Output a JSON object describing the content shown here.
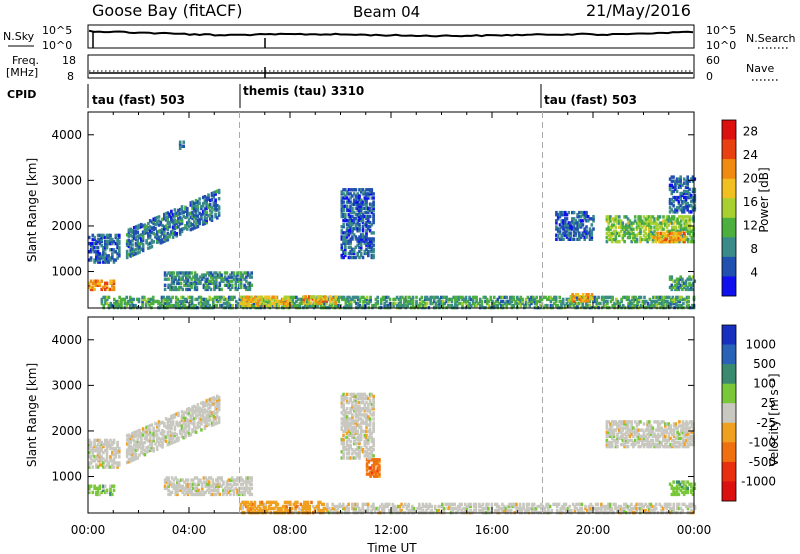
{
  "header": {
    "title": "Goose Bay (fitACF)",
    "beam": "Beam 04",
    "date": "21/May/2016"
  },
  "nsky_panel": {
    "left_label": "N.Sky",
    "right_label": "N.Search",
    "left_ticks": [
      "10^5",
      "10^0"
    ],
    "right_ticks": [
      "10^5",
      "10^0"
    ],
    "right_legend_style": "dotted"
  },
  "freq_panel": {
    "left_label_line1": "Freq.",
    "left_label_line2": "[MHz]",
    "left_ticks": [
      "18",
      "8"
    ],
    "right_label": "Nave",
    "right_ticks": [
      "60",
      "0"
    ],
    "right_legend_style": "dotted"
  },
  "cpid_panel": {
    "label": "CPID",
    "segments": [
      {
        "label": "tau (fast) 503",
        "start_hour": 0
      },
      {
        "label": "themis (tau) 3310",
        "start_hour": 6
      },
      {
        "label": "tau (fast) 503",
        "start_hour": 18
      }
    ]
  },
  "chart_data": [
    {
      "type": "heatmap",
      "name_key": "power",
      "ylabel": "Slant Range [km]",
      "y_ticks": [
        "1000",
        "2000",
        "3000",
        "4000"
      ],
      "y_tick_values": [
        1000,
        2000,
        3000,
        4000
      ],
      "ylim": [
        200,
        4500
      ],
      "xlim_hours": [
        0,
        24
      ],
      "colorbar": {
        "label": "Power [dB]",
        "ticks": [
          "4",
          "8",
          "12",
          "16",
          "20",
          "24",
          "28"
        ],
        "tick_values": [
          4,
          8,
          12,
          16,
          20,
          24,
          28
        ],
        "range": [
          0,
          30
        ],
        "colors": [
          "#1010ee",
          "#2050b0",
          "#3a8a8a",
          "#4caf3e",
          "#a8d030",
          "#f0c020",
          "#f08a10",
          "#e84010",
          "#dd1010"
        ]
      },
      "features": [
        {
          "t": [
            0.0,
            1.0
          ],
          "r": [
            600,
            800
          ],
          "v": 21
        },
        {
          "t": [
            0.0,
            1.2
          ],
          "r": [
            1200,
            1800
          ],
          "v": 6
        },
        {
          "t": [
            1.5,
            5.2
          ],
          "r": [
            1300,
            2800
          ],
          "v": 7,
          "slope": true
        },
        {
          "t": [
            3.0,
            6.5
          ],
          "r": [
            600,
            1000
          ],
          "v": 8
        },
        {
          "t": [
            0.5,
            24.0
          ],
          "r": [
            200,
            450
          ],
          "v": 10
        },
        {
          "t": [
            6.0,
            8.0
          ],
          "r": [
            250,
            450
          ],
          "v": 18
        },
        {
          "t": [
            8.5,
            9.8
          ],
          "r": [
            300,
            450
          ],
          "v": 20
        },
        {
          "t": [
            10.0,
            11.3
          ],
          "r": [
            1300,
            2800
          ],
          "v": 6
        },
        {
          "t": [
            18.5,
            20.0
          ],
          "r": [
            1700,
            2300
          ],
          "v": 6
        },
        {
          "t": [
            19.0,
            20.0
          ],
          "r": [
            350,
            500
          ],
          "v": 20
        },
        {
          "t": [
            20.5,
            24.0
          ],
          "r": [
            1650,
            2200
          ],
          "v": 13
        },
        {
          "t": [
            22.3,
            23.6
          ],
          "r": [
            1650,
            1850
          ],
          "v": 21
        },
        {
          "t": [
            23.0,
            24.0
          ],
          "r": [
            600,
            900
          ],
          "v": 10
        },
        {
          "t": [
            3.6,
            3.8
          ],
          "r": [
            3650,
            3850
          ],
          "v": 6
        },
        {
          "t": [
            23.0,
            24.0
          ],
          "r": [
            2300,
            3100
          ],
          "v": 6
        }
      ]
    },
    {
      "type": "heatmap",
      "name_key": "velocity",
      "ylabel": "Slant Range [km]",
      "y_ticks": [
        "1000",
        "2000",
        "3000",
        "4000"
      ],
      "y_tick_values": [
        1000,
        2000,
        3000,
        4000
      ],
      "ylim": [
        200,
        4500
      ],
      "xlim_hours": [
        0,
        24
      ],
      "xlabel": "Time UT",
      "x_ticks": [
        "00:00",
        "04:00",
        "08:00",
        "12:00",
        "16:00",
        "20:00",
        "00:00"
      ],
      "x_tick_hours": [
        0,
        4,
        8,
        12,
        16,
        20,
        24
      ],
      "colorbar": {
        "label": "Velocity [m s⁻¹]",
        "ticks": [
          "1000",
          "500",
          "100",
          "25",
          "-25",
          "-100",
          "-500",
          "-1000"
        ],
        "colors": [
          "#1830c0",
          "#2a62b8",
          "#3a8a70",
          "#7ac83a",
          "#c8c8c0",
          "#f0a020",
          "#f07010",
          "#e83010",
          "#dd1010"
        ]
      },
      "features": [
        {
          "t": [
            0.0,
            1.0
          ],
          "r": [
            600,
            800
          ],
          "v": 3
        },
        {
          "t": [
            0.0,
            1.2
          ],
          "r": [
            1200,
            1800
          ],
          "v": 4
        },
        {
          "t": [
            1.5,
            5.2
          ],
          "r": [
            1300,
            2800
          ],
          "v": 4,
          "slope": true
        },
        {
          "t": [
            3.0,
            6.5
          ],
          "r": [
            600,
            1000
          ],
          "v": 4
        },
        {
          "t": [
            6.0,
            9.5
          ],
          "r": [
            200,
            450
          ],
          "v": 5
        },
        {
          "t": [
            9.5,
            24.0
          ],
          "r": [
            200,
            400
          ],
          "v": 4
        },
        {
          "t": [
            11.0,
            11.5
          ],
          "r": [
            1000,
            1400
          ],
          "v": 6
        },
        {
          "t": [
            10.0,
            11.3
          ],
          "r": [
            1400,
            2800
          ],
          "v": 4
        },
        {
          "t": [
            20.5,
            24.0
          ],
          "r": [
            1650,
            2200
          ],
          "v": 4
        },
        {
          "t": [
            23.0,
            24.0
          ],
          "r": [
            600,
            900
          ],
          "v": 3
        }
      ]
    }
  ]
}
